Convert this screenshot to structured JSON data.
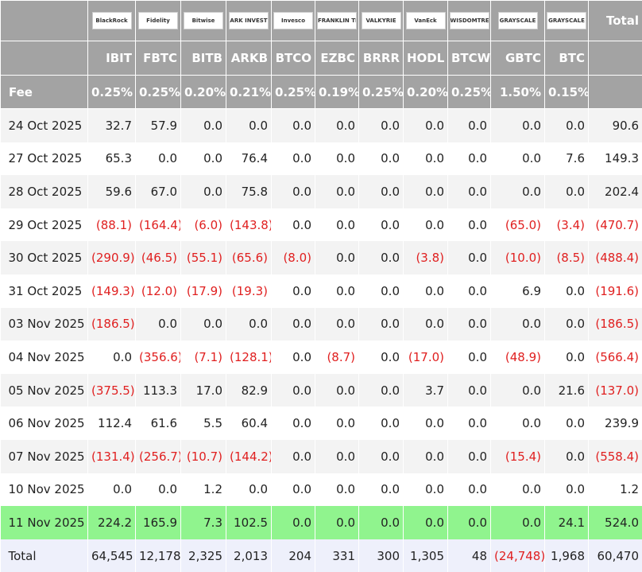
{
  "header": {
    "logos": [
      "BlackRock",
      "Fidelity",
      "Bitwise",
      "ARK INVEST",
      "Invesco",
      "FRANKLIN TEMPLETON",
      "VALKYRIE",
      "VanEck",
      "WISDOMTREE",
      "GRAYSCALE",
      "GRAYSCALE"
    ],
    "total_label": "Total",
    "tickers": [
      "IBIT",
      "FBTC",
      "BITB",
      "ARKB",
      "BTCO",
      "EZBC",
      "BRRR",
      "HODL",
      "BTCW",
      "GBTC",
      "BTC"
    ],
    "fee_label": "Fee",
    "fees": [
      "0.25%",
      "0.25%",
      "0.20%",
      "0.21%",
      "0.25%",
      "0.19%",
      "0.25%",
      "0.20%",
      "0.25%",
      "1.50%",
      "0.15%"
    ]
  },
  "table": {
    "rows": [
      [
        "24 Oct 2025",
        "32.7",
        "57.9",
        "0.0",
        "0.0",
        "0.0",
        "0.0",
        "0.0",
        "0.0",
        "0.0",
        "0.0",
        "0.0",
        "90.6"
      ],
      [
        "27 Oct 2025",
        "65.3",
        "0.0",
        "0.0",
        "76.4",
        "0.0",
        "0.0",
        "0.0",
        "0.0",
        "0.0",
        "0.0",
        "7.6",
        "149.3"
      ],
      [
        "28 Oct 2025",
        "59.6",
        "67.0",
        "0.0",
        "75.8",
        "0.0",
        "0.0",
        "0.0",
        "0.0",
        "0.0",
        "0.0",
        "0.0",
        "202.4"
      ],
      [
        "29 Oct 2025",
        "(88.1)",
        "(164.4)",
        "(6.0)",
        "(143.8)",
        "0.0",
        "0.0",
        "0.0",
        "0.0",
        "0.0",
        "(65.0)",
        "(3.4)",
        "(470.7)"
      ],
      [
        "30 Oct 2025",
        "(290.9)",
        "(46.5)",
        "(55.1)",
        "(65.6)",
        "(8.0)",
        "0.0",
        "0.0",
        "(3.8)",
        "0.0",
        "(10.0)",
        "(8.5)",
        "(488.4)"
      ],
      [
        "31 Oct 2025",
        "(149.3)",
        "(12.0)",
        "(17.9)",
        "(19.3)",
        "0.0",
        "0.0",
        "0.0",
        "0.0",
        "0.0",
        "6.9",
        "0.0",
        "(191.6)"
      ],
      [
        "03 Nov 2025",
        "(186.5)",
        "0.0",
        "0.0",
        "0.0",
        "0.0",
        "0.0",
        "0.0",
        "0.0",
        "0.0",
        "0.0",
        "0.0",
        "(186.5)"
      ],
      [
        "04 Nov 2025",
        "0.0",
        "(356.6)",
        "(7.1)",
        "(128.1)",
        "0.0",
        "(8.7)",
        "0.0",
        "(17.0)",
        "0.0",
        "(48.9)",
        "0.0",
        "(566.4)"
      ],
      [
        "05 Nov 2025",
        "(375.5)",
        "113.3",
        "17.0",
        "82.9",
        "0.0",
        "0.0",
        "0.0",
        "3.7",
        "0.0",
        "0.0",
        "21.6",
        "(137.0)"
      ],
      [
        "06 Nov 2025",
        "112.4",
        "61.6",
        "5.5",
        "60.4",
        "0.0",
        "0.0",
        "0.0",
        "0.0",
        "0.0",
        "0.0",
        "0.0",
        "239.9"
      ],
      [
        "07 Nov 2025",
        "(131.4)",
        "(256.7)",
        "(10.7)",
        "(144.2)",
        "0.0",
        "0.0",
        "0.0",
        "0.0",
        "0.0",
        "(15.4)",
        "0.0",
        "(558.4)"
      ],
      [
        "10 Nov 2025",
        "0.0",
        "0.0",
        "1.2",
        "0.0",
        "0.0",
        "0.0",
        "0.0",
        "0.0",
        "0.0",
        "0.0",
        "0.0",
        "1.2"
      ],
      [
        "11 Nov 2025",
        "224.2",
        "165.9",
        "7.3",
        "102.5",
        "0.0",
        "0.0",
        "0.0",
        "0.0",
        "0.0",
        "0.0",
        "24.1",
        "524.0"
      ]
    ],
    "total": [
      "Total",
      "64,545",
      "12,178",
      "2,325",
      "2,013",
      "204",
      "331",
      "300",
      "1,305",
      "48",
      "(24,748)",
      "1,968",
      "60,470"
    ]
  }
}
